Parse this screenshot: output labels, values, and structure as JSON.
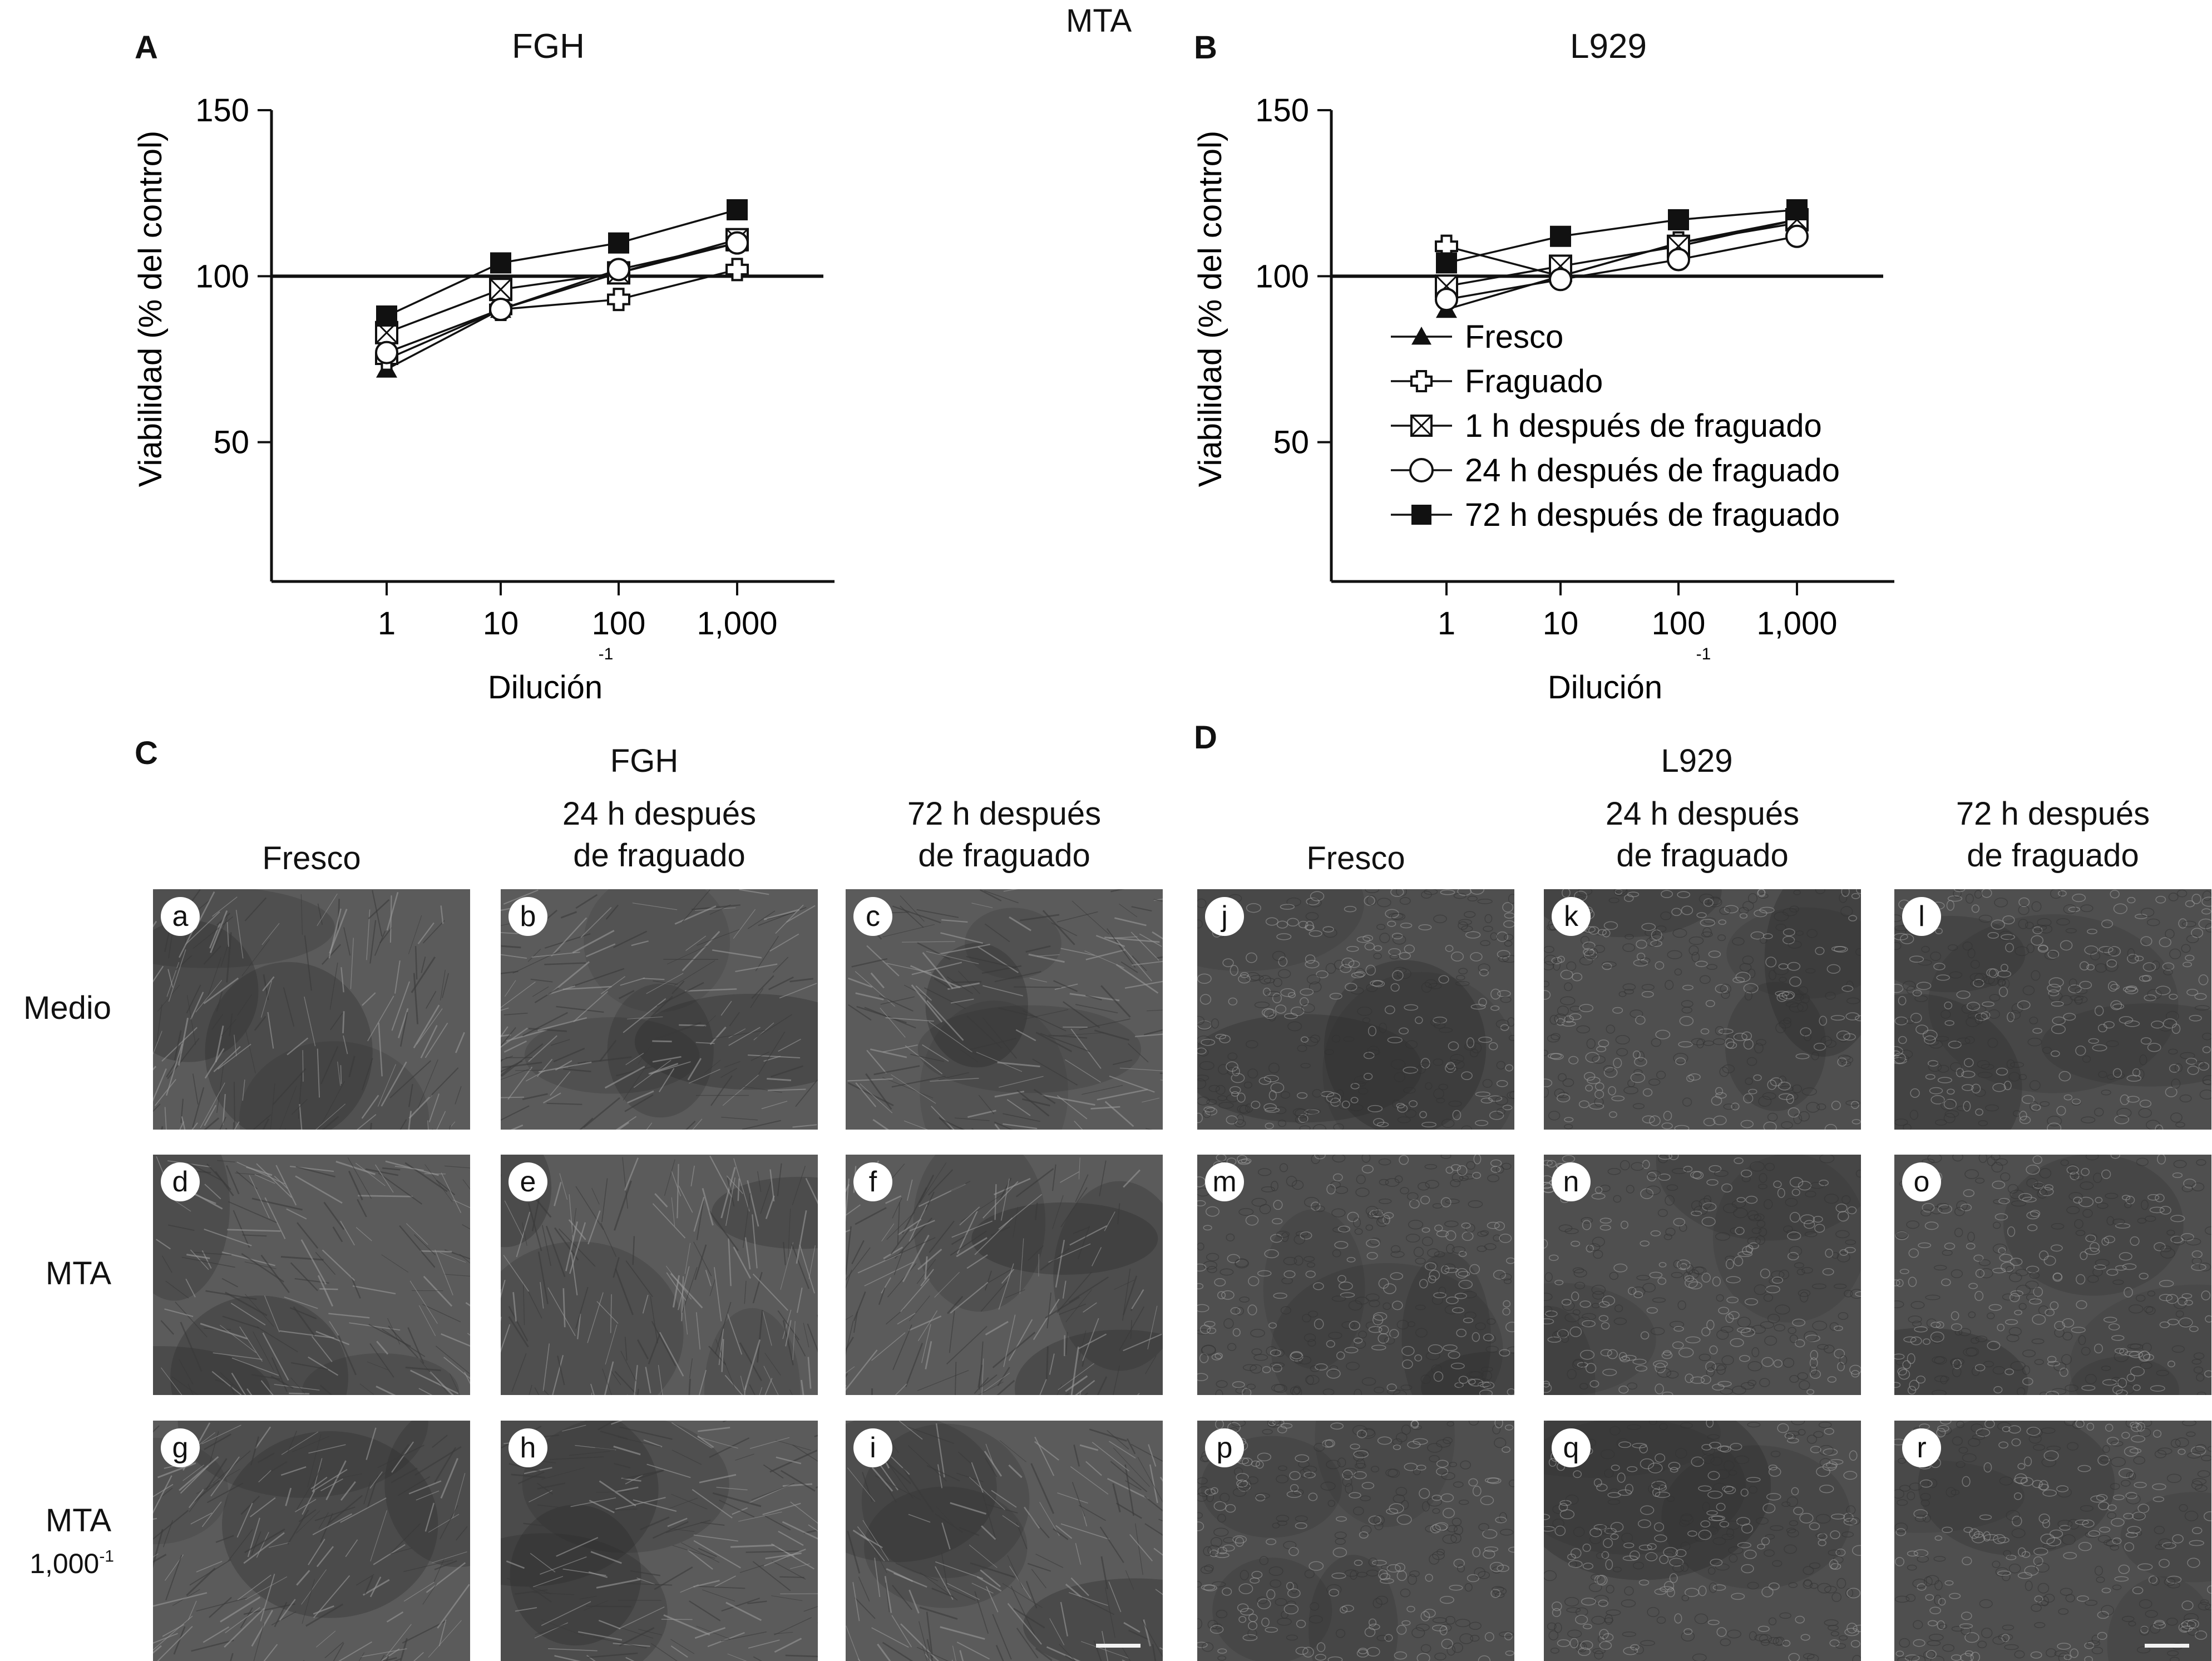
{
  "figure": {
    "main_title": "MTA",
    "panel_a": {
      "letter": "A",
      "title": "FGH"
    },
    "panel_b": {
      "letter": "B",
      "title": "L929"
    },
    "panel_c": {
      "letter": "C",
      "group_title": "FGH"
    },
    "panel_d": {
      "letter": "D",
      "group_title": "L929"
    }
  },
  "chart_data": [
    {
      "type": "line",
      "panel": "A",
      "title": "FGH",
      "xlabel": "Dilución",
      "xlabel_sup": "-1",
      "ylabel": "Viabilidad (% del control)",
      "x_scale": "log",
      "x": [
        1,
        10,
        100,
        1000
      ],
      "x_ticks": [
        "1",
        "10",
        "100",
        "1,000"
      ],
      "ylim": [
        0,
        150
      ],
      "y_ticks": [
        "50",
        "100",
        "150"
      ],
      "reference_line": 100,
      "series": [
        {
          "name": "Fresco",
          "marker": "triangle",
          "values": [
            72,
            90,
            101,
            110
          ]
        },
        {
          "name": "Fraguado",
          "marker": "plus",
          "values": [
            75,
            90,
            93,
            102
          ]
        },
        {
          "name": "1 h después de fraguado",
          "marker": "crossbox",
          "values": [
            83,
            96,
            101,
            111
          ]
        },
        {
          "name": "24 h después de fraguado",
          "marker": "circle",
          "values": [
            77,
            90,
            102,
            110
          ]
        },
        {
          "name": "72 h después de fraguado",
          "marker": "square",
          "values": [
            88,
            104,
            110,
            120
          ]
        }
      ]
    },
    {
      "type": "line",
      "panel": "B",
      "title": "L929",
      "xlabel": "Dilución",
      "xlabel_sup": "-1",
      "ylabel": "Viabilidad (% del control)",
      "x_scale": "log",
      "x": [
        1,
        10,
        100,
        1000
      ],
      "x_ticks": [
        "1",
        "10",
        "100",
        "1,000"
      ],
      "ylim": [
        0,
        150
      ],
      "y_ticks": [
        "50",
        "100",
        "150"
      ],
      "reference_line": 100,
      "legend_position": "lower-right",
      "series": [
        {
          "name": "Fresco",
          "marker": "triangle",
          "values": [
            90,
            100,
            110,
            117
          ]
        },
        {
          "name": "Fraguado",
          "marker": "plus",
          "values": [
            109,
            100,
            110,
            116
          ]
        },
        {
          "name": "1 h después de fraguado",
          "marker": "crossbox",
          "values": [
            97,
            103,
            109,
            117
          ]
        },
        {
          "name": "24 h después de fraguado",
          "marker": "circle",
          "values": [
            93,
            99,
            105,
            112
          ]
        },
        {
          "name": "72 h después de fraguado",
          "marker": "square",
          "values": [
            104,
            112,
            117,
            120
          ]
        }
      ]
    }
  ],
  "micrographs": {
    "col_heads_c": [
      "Fresco",
      "24 h después\nde fraguado",
      "72 h después\nde fraguado"
    ],
    "col_heads_d": [
      "Fresco",
      "24 h después\nde fraguado",
      "72 h después\nde fraguado"
    ],
    "row_heads": [
      "Medio",
      "MTA",
      "MTA"
    ],
    "row3_sub": "1,000",
    "row3_sup": "-1",
    "letters": [
      [
        "a",
        "b",
        "c",
        "j",
        "k",
        "l"
      ],
      [
        "d",
        "e",
        "f",
        "m",
        "n",
        "o"
      ],
      [
        "g",
        "h",
        "i",
        "p",
        "q",
        "r"
      ]
    ],
    "tone": {
      "fgh": "#5b5b5b",
      "l929": "#4f4f4f"
    }
  }
}
